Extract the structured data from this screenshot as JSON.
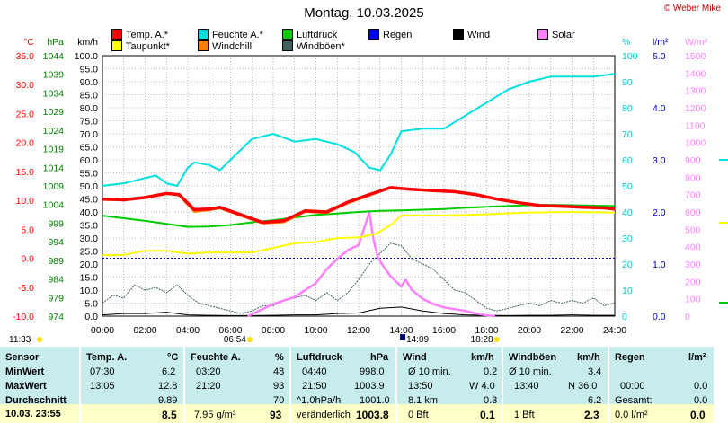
{
  "title": "Montag, 10.03.2025",
  "copyright": "© Weber Mike",
  "axes": {
    "temp": {
      "unit": "°C",
      "ticks": [
        "35.0",
        "30.0",
        "25.0",
        "20.0",
        "15.0",
        "10.0",
        "5.0",
        "0.0",
        "-5.0",
        "-10.0"
      ],
      "color": "#ff0000"
    },
    "pressure": {
      "unit": "hPa",
      "ticks": [
        "1044",
        "1039",
        "1034",
        "1029",
        "1024",
        "1019",
        "1014",
        "1009",
        "1004",
        "999",
        "994",
        "989",
        "984",
        "979",
        "974"
      ],
      "color": "#008000"
    },
    "wind": {
      "unit": "km/h",
      "ticks": [
        "100.0",
        "95.0",
        "90.0",
        "85.0",
        "80.0",
        "75.0",
        "70.0",
        "65.0",
        "60.0",
        "55.0",
        "50.0",
        "45.0",
        "40.0",
        "35.0",
        "30.0",
        "25.0",
        "20.0",
        "15.0",
        "10.0",
        "5.0",
        "0.0"
      ],
      "color": "#000000"
    },
    "humidity": {
      "unit": "%",
      "ticks": [
        "100",
        "90",
        "80",
        "70",
        "60",
        "50",
        "40",
        "30",
        "20",
        "10",
        "0"
      ],
      "color": "#00d0d0"
    },
    "rain": {
      "unit": "l/m²",
      "ticks": [
        "5.0",
        "4.0",
        "3.0",
        "2.0",
        "1.0",
        "0.0"
      ],
      "color": "#0000c0"
    },
    "solar": {
      "unit": "W/m²",
      "ticks": [
        "1500",
        "1400",
        "1300",
        "1200",
        "1100",
        "1000",
        "900",
        "800",
        "700",
        "600",
        "500",
        "400",
        "300",
        "200",
        "100",
        "0"
      ],
      "color": "#ff80ff"
    },
    "x_ticks": [
      "00:00",
      "02:00",
      "04:00",
      "06:00",
      "08:00",
      "10:00",
      "12:00",
      "14:00",
      "16:00",
      "18:00",
      "20:00",
      "22:00",
      "24:00"
    ]
  },
  "legend": [
    {
      "label": "Temp. A.*",
      "color": "#ff0000"
    },
    {
      "label": "Feuchte A.*",
      "color": "#00e0e0"
    },
    {
      "label": "Luftdruck",
      "color": "#00cc00"
    },
    {
      "label": "Wind",
      "color": "#000000"
    },
    {
      "label": "Solar",
      "color": "#ff80ff"
    },
    {
      "label": "Taupunkt*",
      "color": "#ffff00"
    },
    {
      "label": "Windchill",
      "color": "#ff8000"
    },
    {
      "label": "Windböen*",
      "color": "#406060"
    },
    {
      "label": "Regen",
      "color": "#0000ff"
    }
  ],
  "markers": {
    "sunrise": "06:54",
    "sunset": "18:28",
    "moonrise": "11:33",
    "now": "14:09"
  },
  "chart_data": {
    "type": "line",
    "x_range": [
      0,
      24
    ],
    "series": [
      {
        "name": "Temp. A.*",
        "axis": "temp",
        "x": [
          0,
          1,
          2,
          3,
          3.6,
          4.3,
          5,
          5.5,
          6.5,
          7.5,
          8.5,
          9.5,
          10.5,
          11.5,
          12.5,
          13.5,
          14.5,
          15.5,
          16.5,
          17.5,
          18.5,
          19.5,
          20.5,
          21.5,
          22.5,
          23.5,
          24
        ],
        "y": [
          10.2,
          10.1,
          10.5,
          11.2,
          11.0,
          8.4,
          8.5,
          8.8,
          7.5,
          6.2,
          6.5,
          8.2,
          8.0,
          9.7,
          11.0,
          12.2,
          11.9,
          11.7,
          11.5,
          11.0,
          10.2,
          9.6,
          9.1,
          9.0,
          8.8,
          8.7,
          8.5
        ]
      },
      {
        "name": "Windchill",
        "axis": "temp",
        "x": [
          0,
          1,
          2,
          3,
          3.6,
          4.3,
          5,
          5.5,
          6.5,
          7.5,
          8.5,
          9.5,
          10.5,
          11.5,
          12.5,
          13.5,
          14.5,
          15.5,
          16.5,
          17.5,
          18.5,
          19.5,
          20.5,
          21.5,
          22.5,
          23.5,
          24
        ],
        "y": [
          10.2,
          10.1,
          10.5,
          11.2,
          10.8,
          8.0,
          8.3,
          8.6,
          7.3,
          6.0,
          6.2,
          8.0,
          7.8,
          9.5,
          10.8,
          12.2,
          11.9,
          11.7,
          11.5,
          11.0,
          10.2,
          9.6,
          9.1,
          9.0,
          8.8,
          8.7,
          8.5
        ]
      },
      {
        "name": "Taupunkt*",
        "axis": "temp",
        "x": [
          0,
          1,
          2,
          3,
          4,
          5,
          6,
          7,
          8,
          9,
          10,
          11,
          12,
          12.8,
          13.5,
          14,
          16,
          18,
          20,
          22,
          24
        ],
        "y": [
          0.5,
          0.6,
          1.3,
          1.3,
          0.8,
          1.0,
          1.0,
          1.0,
          1.8,
          2.6,
          2.8,
          3.5,
          3.6,
          4.2,
          5.7,
          7.4,
          7.4,
          7.6,
          7.9,
          8.0,
          7.9
        ]
      },
      {
        "name": "Feuchte A.*",
        "axis": "humidity",
        "x": [
          0,
          1,
          2,
          2.5,
          3,
          3.5,
          4,
          4.3,
          5,
          5.5,
          6,
          7,
          8,
          9,
          10,
          11,
          11.8,
          12.5,
          13,
          13.5,
          14,
          15,
          16,
          17,
          18,
          19,
          20,
          21,
          22,
          23,
          24
        ],
        "y": [
          50,
          51,
          53,
          54,
          51,
          50,
          57,
          59,
          58,
          56,
          60,
          68,
          70,
          67,
          68,
          66,
          63,
          57,
          56,
          62,
          71,
          72,
          72,
          77,
          82,
          87,
          90,
          92,
          92,
          92,
          93
        ]
      },
      {
        "name": "Luftdruck",
        "axis": "pressure",
        "x": [
          0,
          1,
          2,
          3,
          4,
          5,
          6,
          7,
          8,
          9,
          10,
          11,
          12,
          13,
          14,
          15,
          16,
          17,
          18,
          19,
          20,
          21,
          22,
          23,
          24
        ],
        "y": [
          1001.0,
          1000.3,
          999.6,
          998.8,
          998.0,
          998.1,
          998.5,
          999.2,
          999.8,
          1000.5,
          1001.2,
          1001.6,
          1002.0,
          1002.3,
          1002.4,
          1002.6,
          1002.8,
          1003.1,
          1003.4,
          1003.6,
          1003.8,
          1003.9,
          1003.8,
          1003.7,
          1003.6
        ]
      },
      {
        "name": "Solar",
        "axis": "solar",
        "x": [
          6.8,
          7.5,
          8,
          9,
          10,
          10.5,
          11,
          11.5,
          12,
          12.3,
          12.5,
          12.7,
          12.9,
          13.2,
          13.5,
          14,
          14.2,
          14.5,
          15,
          15.5,
          16,
          17,
          17.5,
          18,
          18.4
        ],
        "y": [
          0,
          40,
          70,
          110,
          190,
          270,
          330,
          380,
          410,
          520,
          600,
          440,
          340,
          280,
          230,
          170,
          210,
          150,
          100,
          70,
          50,
          30,
          15,
          5,
          0
        ]
      },
      {
        "name": "Windböen*",
        "axis": "wind",
        "x": [
          0,
          0.5,
          1,
          1.5,
          2,
          2.5,
          3,
          3.5,
          4,
          4.5,
          5,
          5.5,
          6,
          6.5,
          7,
          7.5,
          8,
          8.5,
          9,
          9.5,
          10,
          10.5,
          11,
          11.5,
          12,
          12.5,
          13,
          13.5,
          14,
          14.5,
          15,
          15.5,
          16,
          16.5,
          17,
          17.5,
          18,
          18.5,
          19,
          19.5,
          20,
          20.5,
          21,
          21.5,
          22,
          22.5,
          23,
          23.5,
          24
        ],
        "y": [
          5,
          8,
          7,
          12,
          10,
          11,
          9,
          12,
          8,
          5,
          4,
          3,
          2,
          1,
          2,
          4,
          4,
          6,
          7,
          8,
          6,
          9,
          6,
          9,
          14,
          20,
          24,
          28,
          27,
          22,
          20,
          18,
          14,
          10,
          9,
          6,
          3,
          2,
          3,
          4,
          5,
          4,
          6,
          5,
          6,
          5,
          7,
          4,
          5
        ]
      },
      {
        "name": "Wind",
        "axis": "wind",
        "x": [
          0,
          1,
          2,
          3,
          4,
          5,
          6,
          7,
          8,
          9,
          10,
          11,
          12,
          13,
          14,
          15,
          16,
          17,
          18,
          19,
          20,
          21,
          22,
          23,
          24
        ],
        "y": [
          0.5,
          1,
          1,
          1.5,
          0.5,
          0.3,
          0.2,
          0.2,
          0.3,
          0.5,
          0.5,
          1,
          1.2,
          3,
          3.5,
          2,
          1,
          0.5,
          0.3,
          0.2,
          0.3,
          0.3,
          0.5,
          0.3,
          0.3
        ]
      }
    ]
  },
  "stats": {
    "sensor": {
      "header": "Sensor",
      "rows": [
        "MinWert",
        "MaxWert",
        "Durchschnitt"
      ],
      "now": "10.03. 23:55"
    },
    "temp": {
      "header": "Temp. A.",
      "unit": "°C",
      "min_time": "07:30",
      "min_val": "6.2",
      "max_time": "13:05",
      "max_val": "12.8",
      "avg": "9.89",
      "now": "8.5"
    },
    "humidity": {
      "header": "Feuchte A.",
      "unit": "%",
      "min_time": "03:20",
      "min_val": "48",
      "max_time": "21:20",
      "max_val": "93",
      "avg": "70",
      "abs": "7.95 g/m³",
      "now": "93"
    },
    "pressure": {
      "header": "Luftdruck",
      "unit": "hPa",
      "min_time": "04:40",
      "min_val": "998.0",
      "max_time": "21:50",
      "max_val": "1003.9",
      "trend_rate": "^1.0hPa/h",
      "trend_val": "1001.0",
      "trend_word": "veränderlich",
      "now": "1003.8"
    },
    "wind": {
      "header": "Wind",
      "unit": "km/h",
      "r1_label": "Ø 10 min.",
      "r1_val": "0.2",
      "r2_time": "13:50",
      "r2_val": "W 4.0",
      "r3_label": "8.1 km",
      "r3_val": "0.3",
      "now_label": "0 Bft",
      "now": "0.1"
    },
    "gust": {
      "header": "Windböen",
      "unit": "km/h",
      "r1_label": "Ø 10 min.",
      "r1_val": "3.4",
      "r2_time": "13:40",
      "r2_val": "N 36.0",
      "r3_val": "6.2",
      "now_label": "1 Bft",
      "now": "2.3"
    },
    "rain": {
      "header": "Regen",
      "unit": "l/m²",
      "r2_time": "00:00",
      "r2_val": "0.0",
      "r3_label": "Gesamt:",
      "r3_val": "0.0",
      "now_label": "0.0 l/m²",
      "now": "0.0"
    }
  }
}
